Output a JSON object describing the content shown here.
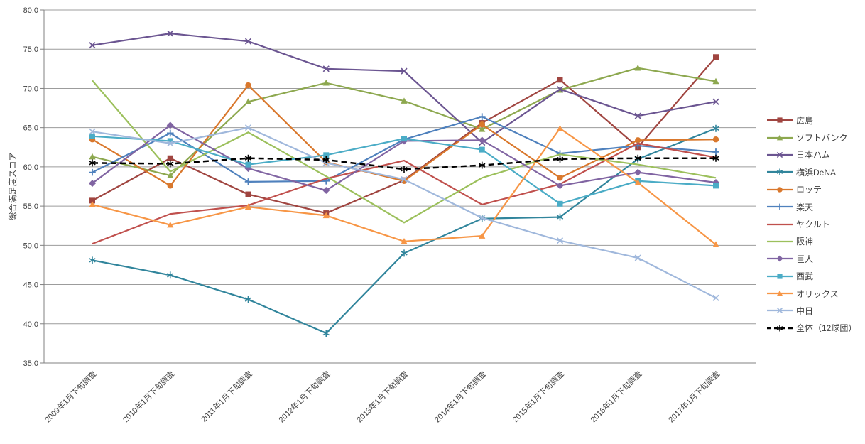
{
  "chart_data": {
    "type": "line",
    "title": "",
    "ylabel": "総合満足度スコア",
    "ylim": [
      35.0,
      80.0
    ],
    "ytick_step": 5.0,
    "ytick_labels": [
      "80.0",
      "75.0",
      "70.0",
      "65.0",
      "60.0",
      "55.0",
      "50.0",
      "45.0",
      "40.0",
      "35.0"
    ],
    "grid": true,
    "legend_position": "right",
    "axis_color": "#808080",
    "grid_color": "#9c9c9c",
    "categories": [
      "2009年1月下旬調査",
      "2010年1月下旬調査",
      "2011年1月下旬調査",
      "2012年1月下旬調査",
      "2013年1月下旬調査",
      "2014年1月下旬調査",
      "2015年1月下旬調査",
      "2016年1月下旬調査",
      "2017年1月下旬調査"
    ],
    "series": [
      {
        "name": "広島",
        "color": "#a04540",
        "marker": "square",
        "line_dash": "solid",
        "values": [
          55.7,
          61.1,
          56.5,
          54.1,
          58.3,
          65.6,
          71.1,
          62.5,
          74.0
        ]
      },
      {
        "name": "ソフトバンク",
        "color": "#8da84f",
        "marker": "triangle",
        "line_dash": "solid",
        "values": [
          61.3,
          58.9,
          68.3,
          70.7,
          68.4,
          64.8,
          69.8,
          72.6,
          70.9
        ]
      },
      {
        "name": "日本ハム",
        "color": "#6b5591",
        "marker": "x",
        "line_dash": "solid",
        "values": [
          75.5,
          77.0,
          76.0,
          72.5,
          72.2,
          63.1,
          69.9,
          66.5,
          68.3
        ]
      },
      {
        "name": "横浜DeNA",
        "color": "#31859c",
        "marker": "asterisk",
        "line_dash": "solid",
        "values": [
          48.1,
          46.2,
          43.1,
          38.8,
          49.0,
          53.4,
          53.6,
          61.0,
          64.9
        ]
      },
      {
        "name": "ロッテ",
        "color": "#d9782d",
        "marker": "circle",
        "line_dash": "solid",
        "values": [
          63.5,
          57.6,
          70.4,
          60.6,
          58.2,
          65.4,
          58.6,
          63.4,
          63.5
        ]
      },
      {
        "name": "楽天",
        "color": "#4f81bd",
        "marker": "plus",
        "line_dash": "solid",
        "values": [
          59.3,
          64.3,
          58.1,
          58.2,
          63.5,
          66.4,
          61.7,
          62.7,
          61.9
        ]
      },
      {
        "name": "ヤクルト",
        "color": "#c0504d",
        "marker": "none",
        "line_dash": "solid",
        "values": [
          50.2,
          54.0,
          55.1,
          58.5,
          60.8,
          55.2,
          57.8,
          63.0,
          61.2
        ]
      },
      {
        "name": "阪神",
        "color": "#9cc05c",
        "marker": "none",
        "line_dash": "solid",
        "values": [
          71.0,
          59.4,
          64.4,
          58.8,
          52.9,
          58.6,
          61.6,
          60.3,
          58.6
        ]
      },
      {
        "name": "巨人",
        "color": "#8064a2",
        "marker": "diamond",
        "line_dash": "solid",
        "values": [
          57.9,
          65.3,
          59.8,
          57.0,
          63.3,
          63.4,
          57.6,
          59.3,
          58.0
        ]
      },
      {
        "name": "西武",
        "color": "#4bacc6",
        "marker": "square",
        "line_dash": "solid",
        "values": [
          63.9,
          63.3,
          60.3,
          61.5,
          63.6,
          62.2,
          55.3,
          58.2,
          57.6
        ]
      },
      {
        "name": "オリックス",
        "color": "#f79646",
        "marker": "triangle",
        "line_dash": "solid",
        "values": [
          55.2,
          52.6,
          54.9,
          53.8,
          50.5,
          51.2,
          64.9,
          58.0,
          50.1
        ]
      },
      {
        "name": "中日",
        "color": "#a0b8dc",
        "marker": "x",
        "line_dash": "solid",
        "values": [
          64.5,
          63.0,
          65.0,
          60.5,
          58.4,
          53.5,
          50.6,
          48.4,
          43.3
        ]
      },
      {
        "name": "全体（12球団）",
        "color": "#000000",
        "marker": "asterisk",
        "line_dash": "dashed",
        "values": [
          60.5,
          60.4,
          61.1,
          60.9,
          59.7,
          60.2,
          61.0,
          61.1,
          61.1
        ]
      }
    ]
  }
}
